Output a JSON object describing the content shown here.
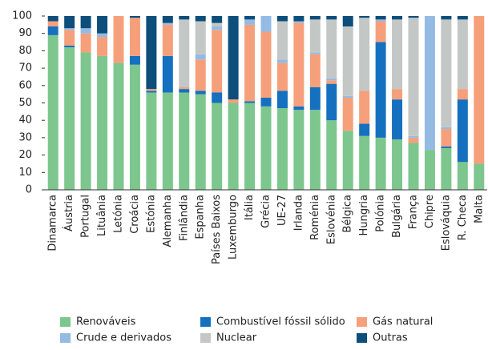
{
  "chart_data": {
    "type": "stacked_bar",
    "categories": [
      "Dinamarca",
      "Áustria",
      "Portugal",
      "Lituânia",
      "Letónia",
      "Croácia",
      "Estónia",
      "Alemanha",
      "Finlândia",
      "Espanha",
      "Países Baixos",
      "Luxemburgo",
      "Itália",
      "Grécia",
      "UE-27",
      "Irlanda",
      "Roménia",
      "Eslovénia",
      "Bélgica",
      "Hungria",
      "Polónia",
      "Bulgária",
      "França",
      "Chipre",
      "Eslováquia",
      "R. Checa",
      "Malta"
    ],
    "series": [
      {
        "name": "Renováveis",
        "color": "#7dc68e",
        "values": [
          89,
          82,
          79,
          77,
          73,
          72,
          56,
          56,
          56,
          55,
          50,
          50,
          50,
          48,
          47,
          46,
          46,
          40,
          34,
          31,
          30,
          29,
          27,
          23,
          24,
          16,
          15
        ]
      },
      {
        "name": "Combustível fóssil sólido",
        "color": "#1570bf",
        "values": [
          5,
          1,
          0,
          0,
          0,
          5,
          1,
          21,
          2,
          2,
          6,
          0,
          1,
          5,
          10,
          2,
          13,
          21,
          0,
          7,
          55,
          23,
          0,
          0,
          1,
          36,
          0
        ]
      },
      {
        "name": "Gás natural",
        "color": "#f5a07b",
        "values": [
          3,
          9,
          11,
          11,
          27,
          22,
          1,
          18,
          1,
          18,
          36,
          2,
          44,
          38,
          16,
          48,
          19,
          2,
          19,
          19,
          12,
          6,
          3,
          0,
          10,
          6,
          85
        ]
      },
      {
        "name": "Crude e derivados",
        "color": "#93bbe3",
        "values": [
          0,
          1,
          3,
          2,
          0,
          0,
          0,
          1,
          0,
          3,
          2,
          0,
          3,
          9,
          2,
          1,
          1,
          1,
          1,
          0,
          1,
          0,
          1,
          77,
          1,
          0,
          0
        ]
      },
      {
        "name": "Nuclear",
        "color": "#c3c7c6",
        "values": [
          0,
          0,
          0,
          0,
          0,
          0,
          0,
          0,
          39,
          19,
          2,
          0,
          0,
          0,
          22,
          0,
          19,
          34,
          40,
          42,
          0,
          40,
          68,
          0,
          62,
          40,
          0
        ]
      },
      {
        "name": "Outras",
        "color": "#0e4e7b",
        "values": [
          3,
          7,
          7,
          10,
          0,
          1,
          42,
          4,
          2,
          3,
          4,
          48,
          2,
          0,
          3,
          3,
          2,
          2,
          6,
          1,
          2,
          2,
          1,
          0,
          2,
          2,
          0
        ]
      }
    ],
    "ylim": [
      0,
      100
    ],
    "yticks": [
      0,
      10,
      20,
      30,
      40,
      50,
      60,
      70,
      80,
      90,
      100
    ]
  }
}
